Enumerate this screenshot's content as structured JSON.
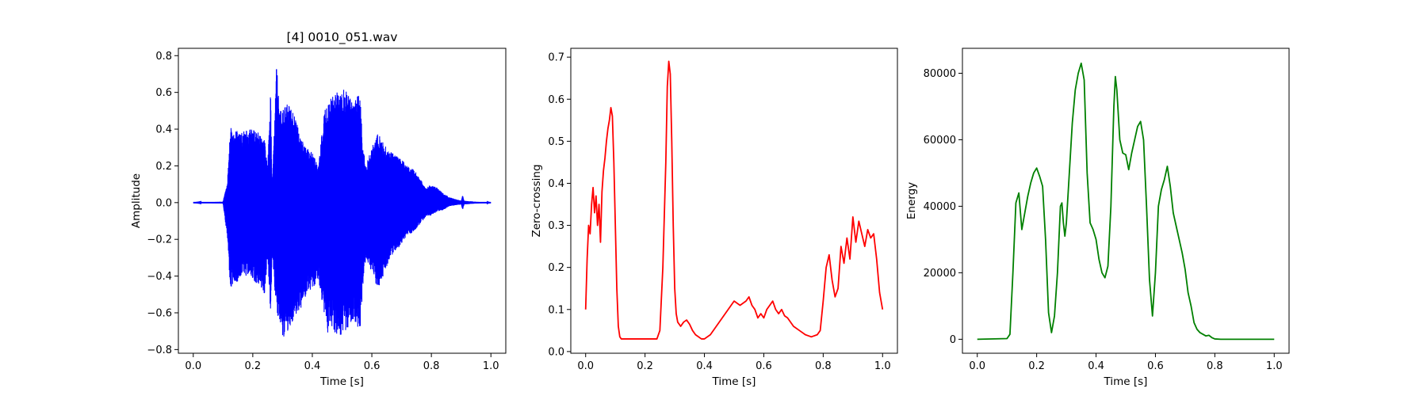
{
  "figure": {
    "background": "#ffffff"
  },
  "chart_data": [
    {
      "type": "line",
      "title": "[4] 0010_051.wav",
      "xlabel": "Time [s]",
      "ylabel": "Amplitude",
      "xlim": [
        -0.05,
        1.05
      ],
      "ylim": [
        -0.82,
        0.84
      ],
      "xticks": [
        0.0,
        0.2,
        0.4,
        0.6,
        0.8,
        1.0
      ],
      "xtick_labels": [
        "0.0",
        "0.2",
        "0.4",
        "0.6",
        "0.8",
        "1.0"
      ],
      "yticks": [
        -0.8,
        -0.6,
        -0.4,
        -0.2,
        0.0,
        0.2,
        0.4,
        0.6,
        0.8
      ],
      "ytick_labels": [
        "−0.8",
        "−0.6",
        "−0.4",
        "−0.2",
        "0.0",
        "0.2",
        "0.4",
        "0.6",
        "0.8"
      ],
      "grid": false,
      "color": "#0000ff",
      "style": "waveform",
      "series": [
        {
          "x": [
            0.0,
            0.1,
            0.115,
            0.125,
            0.14,
            0.16,
            0.18,
            0.2,
            0.22,
            0.24,
            0.25,
            0.26,
            0.265,
            0.27,
            0.28,
            0.29,
            0.3,
            0.32,
            0.34,
            0.36,
            0.38,
            0.4,
            0.42,
            0.44,
            0.45,
            0.46,
            0.48,
            0.5,
            0.52,
            0.54,
            0.56,
            0.57,
            0.58,
            0.6,
            0.62,
            0.64,
            0.66,
            0.68,
            0.7,
            0.72,
            0.74,
            0.76,
            0.78,
            0.8,
            0.82,
            0.84,
            0.86,
            0.88,
            0.9,
            0.905,
            0.91,
            0.95,
            1.0
          ],
          "upper": [
            0.0,
            0.005,
            0.12,
            0.42,
            0.4,
            0.38,
            0.4,
            0.4,
            0.38,
            0.34,
            0.2,
            0.62,
            0.1,
            0.3,
            0.77,
            0.5,
            0.5,
            0.55,
            0.48,
            0.36,
            0.3,
            0.28,
            0.2,
            0.5,
            0.52,
            0.56,
            0.62,
            0.62,
            0.6,
            0.55,
            0.6,
            0.3,
            0.2,
            0.3,
            0.38,
            0.32,
            0.28,
            0.26,
            0.24,
            0.2,
            0.18,
            0.14,
            0.08,
            0.1,
            0.08,
            0.05,
            0.03,
            0.02,
            0.01,
            0.04,
            0.01,
            0.005,
            0.0
          ],
          "lower": [
            0.0,
            -0.005,
            -0.2,
            -0.48,
            -0.44,
            -0.42,
            -0.4,
            -0.42,
            -0.45,
            -0.5,
            -0.3,
            -0.62,
            -0.3,
            -0.4,
            -0.6,
            -0.65,
            -0.74,
            -0.7,
            -0.62,
            -0.58,
            -0.5,
            -0.47,
            -0.42,
            -0.6,
            -0.72,
            -0.66,
            -0.72,
            -0.72,
            -0.68,
            -0.63,
            -0.72,
            -0.45,
            -0.3,
            -0.38,
            -0.48,
            -0.4,
            -0.3,
            -0.27,
            -0.22,
            -0.18,
            -0.16,
            -0.12,
            -0.08,
            -0.07,
            -0.05,
            -0.04,
            -0.02,
            -0.015,
            -0.01,
            -0.04,
            -0.01,
            -0.005,
            0.0
          ]
        }
      ]
    },
    {
      "type": "line",
      "title": "",
      "xlabel": "Time [s]",
      "ylabel": "Zero-crossing",
      "xlim": [
        -0.05,
        1.05
      ],
      "ylim": [
        -0.004,
        0.721
      ],
      "xticks": [
        0.0,
        0.2,
        0.4,
        0.6,
        0.8,
        1.0
      ],
      "xtick_labels": [
        "0.0",
        "0.2",
        "0.4",
        "0.6",
        "0.8",
        "1.0"
      ],
      "yticks": [
        0.0,
        0.1,
        0.2,
        0.3,
        0.4,
        0.5,
        0.6,
        0.7
      ],
      "ytick_labels": [
        "0.0",
        "0.1",
        "0.2",
        "0.3",
        "0.4",
        "0.5",
        "0.6",
        "0.7"
      ],
      "grid": false,
      "color": "#ff0000",
      "series": [
        {
          "x": [
            0.0,
            0.005,
            0.01,
            0.015,
            0.02,
            0.025,
            0.03,
            0.035,
            0.04,
            0.045,
            0.05,
            0.055,
            0.06,
            0.065,
            0.07,
            0.075,
            0.08,
            0.085,
            0.09,
            0.095,
            0.1,
            0.105,
            0.11,
            0.115,
            0.12,
            0.125,
            0.13,
            0.15,
            0.2,
            0.24,
            0.25,
            0.26,
            0.27,
            0.275,
            0.28,
            0.285,
            0.29,
            0.295,
            0.3,
            0.305,
            0.31,
            0.32,
            0.33,
            0.34,
            0.35,
            0.36,
            0.37,
            0.38,
            0.39,
            0.4,
            0.42,
            0.44,
            0.46,
            0.48,
            0.5,
            0.52,
            0.54,
            0.55,
            0.56,
            0.57,
            0.58,
            0.59,
            0.6,
            0.61,
            0.62,
            0.63,
            0.64,
            0.65,
            0.66,
            0.67,
            0.68,
            0.7,
            0.72,
            0.74,
            0.76,
            0.78,
            0.79,
            0.8,
            0.81,
            0.82,
            0.83,
            0.84,
            0.85,
            0.86,
            0.87,
            0.88,
            0.89,
            0.9,
            0.91,
            0.92,
            0.93,
            0.94,
            0.95,
            0.96,
            0.97,
            0.98,
            0.99,
            1.0
          ],
          "y": [
            0.1,
            0.22,
            0.3,
            0.28,
            0.35,
            0.39,
            0.33,
            0.37,
            0.3,
            0.35,
            0.26,
            0.38,
            0.43,
            0.46,
            0.5,
            0.53,
            0.55,
            0.58,
            0.56,
            0.45,
            0.3,
            0.15,
            0.06,
            0.035,
            0.03,
            0.03,
            0.03,
            0.03,
            0.03,
            0.03,
            0.05,
            0.2,
            0.45,
            0.63,
            0.69,
            0.66,
            0.5,
            0.3,
            0.15,
            0.09,
            0.07,
            0.06,
            0.07,
            0.075,
            0.065,
            0.05,
            0.04,
            0.035,
            0.03,
            0.03,
            0.04,
            0.06,
            0.08,
            0.1,
            0.12,
            0.11,
            0.12,
            0.13,
            0.11,
            0.1,
            0.08,
            0.09,
            0.08,
            0.1,
            0.11,
            0.12,
            0.1,
            0.09,
            0.1,
            0.085,
            0.08,
            0.06,
            0.05,
            0.04,
            0.035,
            0.04,
            0.05,
            0.12,
            0.2,
            0.23,
            0.17,
            0.13,
            0.15,
            0.25,
            0.21,
            0.27,
            0.22,
            0.32,
            0.26,
            0.31,
            0.28,
            0.25,
            0.29,
            0.27,
            0.28,
            0.22,
            0.14,
            0.1
          ]
        }
      ]
    },
    {
      "type": "line",
      "title": "",
      "xlabel": "Time [s]",
      "ylabel": "Energy",
      "xlim": [
        -0.05,
        1.05
      ],
      "ylim": [
        -4200,
        87500
      ],
      "xticks": [
        0.0,
        0.2,
        0.4,
        0.6,
        0.8,
        1.0
      ],
      "xtick_labels": [
        "0.0",
        "0.2",
        "0.4",
        "0.6",
        "0.8",
        "1.0"
      ],
      "yticks": [
        0,
        20000,
        40000,
        60000,
        80000
      ],
      "ytick_labels": [
        "0",
        "20000",
        "40000",
        "60000",
        "80000"
      ],
      "grid": false,
      "color": "#008000",
      "series": [
        {
          "x": [
            0.0,
            0.1,
            0.11,
            0.12,
            0.13,
            0.14,
            0.15,
            0.16,
            0.17,
            0.18,
            0.19,
            0.2,
            0.21,
            0.22,
            0.23,
            0.24,
            0.25,
            0.26,
            0.27,
            0.28,
            0.285,
            0.29,
            0.295,
            0.3,
            0.31,
            0.32,
            0.33,
            0.34,
            0.35,
            0.36,
            0.37,
            0.38,
            0.39,
            0.4,
            0.41,
            0.42,
            0.43,
            0.44,
            0.45,
            0.46,
            0.465,
            0.47,
            0.48,
            0.49,
            0.5,
            0.51,
            0.52,
            0.53,
            0.54,
            0.55,
            0.56,
            0.57,
            0.58,
            0.59,
            0.6,
            0.61,
            0.62,
            0.63,
            0.64,
            0.65,
            0.66,
            0.67,
            0.68,
            0.69,
            0.7,
            0.71,
            0.72,
            0.73,
            0.74,
            0.75,
            0.76,
            0.77,
            0.78,
            0.79,
            0.8,
            0.82,
            0.9,
            1.0
          ],
          "y": [
            0,
            200,
            1500,
            20000,
            41000,
            44000,
            33000,
            38000,
            43000,
            47000,
            50000,
            51500,
            49000,
            46000,
            30000,
            8000,
            2000,
            7000,
            20000,
            40000,
            41000,
            35000,
            31000,
            35000,
            50000,
            65000,
            75000,
            80000,
            83000,
            78000,
            50000,
            35000,
            33000,
            30000,
            24000,
            20000,
            18500,
            22000,
            40000,
            70000,
            79000,
            75000,
            60000,
            56000,
            55500,
            51000,
            56000,
            60000,
            64000,
            65500,
            60000,
            40000,
            18000,
            7000,
            20000,
            40000,
            45000,
            48000,
            52000,
            46000,
            38000,
            34000,
            30000,
            26000,
            21000,
            14000,
            10000,
            5000,
            3000,
            2000,
            1500,
            1000,
            1200,
            500,
            100,
            0,
            0,
            0
          ]
        }
      ]
    }
  ]
}
